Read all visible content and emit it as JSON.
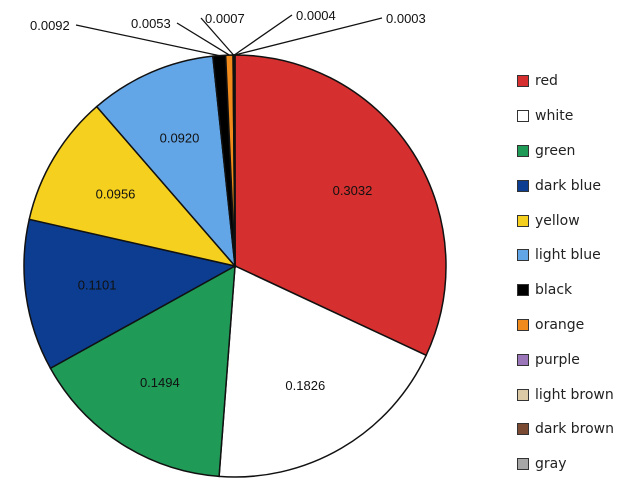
{
  "chart_data": {
    "type": "pie",
    "title": "",
    "start_angle_deg": 0,
    "direction": "clockwise",
    "slices": [
      {
        "label": "red",
        "value": 0.3032,
        "value_label": "0.3032",
        "color": "#d5302f"
      },
      {
        "label": "white",
        "value": 0.1826,
        "value_label": "0.1826",
        "color": "#ffffff"
      },
      {
        "label": "green",
        "value": 0.1494,
        "value_label": "0.1494",
        "color": "#1f9a57"
      },
      {
        "label": "dark blue",
        "value": 0.1101,
        "value_label": "0.1101",
        "color": "#0c3d91"
      },
      {
        "label": "yellow",
        "value": 0.0956,
        "value_label": "0.0956",
        "color": "#f6d01e"
      },
      {
        "label": "light blue",
        "value": 0.092,
        "value_label": "0.0920",
        "color": "#63a6e8"
      },
      {
        "label": "black",
        "value": 0.0092,
        "value_label": "0.0092",
        "color": "#000000"
      },
      {
        "label": "orange",
        "value": 0.0053,
        "value_label": "0.0053",
        "color": "#f08a1c"
      },
      {
        "label": "purple",
        "value": 0.0007,
        "value_label": "0.0007",
        "color": "#9b76b8"
      },
      {
        "label": "light brown",
        "value": 0.0004,
        "value_label": "0.0004",
        "color": "#dcc9a6"
      },
      {
        "label": "dark brown",
        "value": 0.0003,
        "value_label": "0.0003",
        "color": "#7a4a32"
      },
      {
        "label": "gray",
        "value": 0.0,
        "value_label": "",
        "color": "#a6a6a6"
      }
    ],
    "legend_position": "right"
  }
}
